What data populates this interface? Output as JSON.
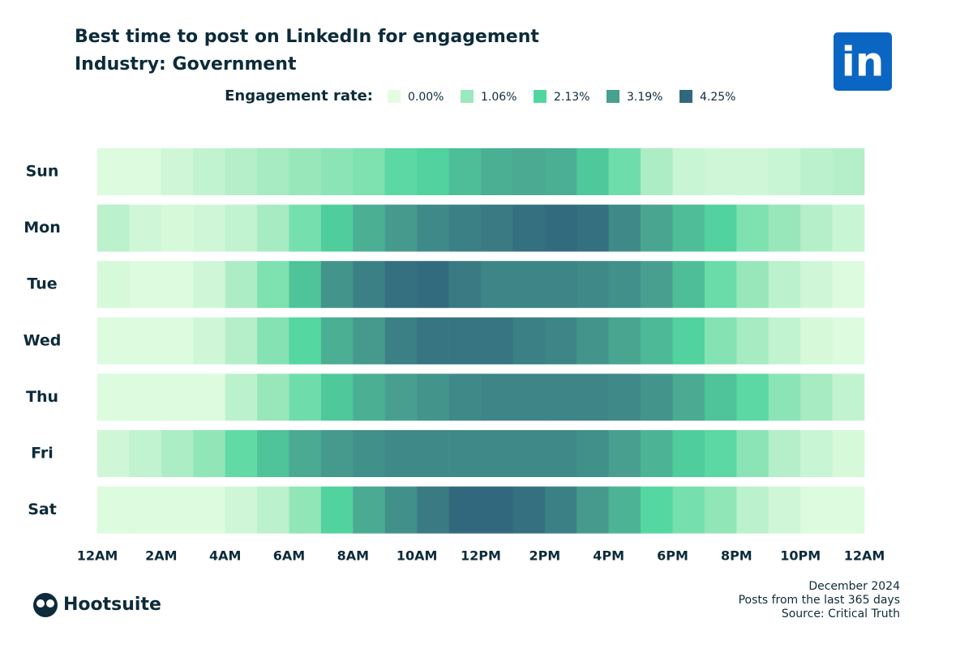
{
  "chart_data": {
    "type": "heatmap",
    "title": "Best time to post on LinkedIn for engagement",
    "subtitle": "Industry: Government",
    "legend_title": "Engagement rate:",
    "legend": [
      {
        "value": 0,
        "label": "0.00%",
        "color": "#e4fde1"
      },
      {
        "value": 1.06,
        "label": "1.06%",
        "color": "#9be8bc"
      },
      {
        "value": 2.13,
        "label": "2.13%",
        "color": "#52d6a0"
      },
      {
        "value": 3.19,
        "label": "3.19%",
        "color": "#48a08f"
      },
      {
        "value": 4.25,
        "label": "4.25%",
        "color": "#31687d"
      }
    ],
    "xlim": [
      0,
      24
    ],
    "xticks": [
      {
        "value": 0,
        "label": "12AM"
      },
      {
        "value": 2,
        "label": "2AM"
      },
      {
        "value": 4,
        "label": "4AM"
      },
      {
        "value": 6,
        "label": "6AM"
      },
      {
        "value": 8,
        "label": "8AM"
      },
      {
        "value": 10,
        "label": "10AM"
      },
      {
        "value": 12,
        "label": "12PM"
      },
      {
        "value": 14,
        "label": "2PM"
      },
      {
        "value": 16,
        "label": "4PM"
      },
      {
        "value": 18,
        "label": "6PM"
      },
      {
        "value": 20,
        "label": "8PM"
      },
      {
        "value": 22,
        "label": "10PM"
      },
      {
        "value": 24,
        "label": "12AM"
      }
    ],
    "series": [
      {
        "name": "Sun",
        "values": [
          0.1,
          0.1,
          0.3,
          0.5,
          0.7,
          0.9,
          1.1,
          1.3,
          1.5,
          2.0,
          2.2,
          2.6,
          2.9,
          3.0,
          2.9,
          2.4,
          1.7,
          0.8,
          0.4,
          0.3,
          0.3,
          0.4,
          0.6,
          0.7
        ]
      },
      {
        "name": "Mon",
        "values": [
          0.6,
          0.3,
          0.2,
          0.3,
          0.5,
          0.9,
          1.6,
          2.3,
          2.9,
          3.3,
          3.6,
          3.8,
          3.9,
          4.1,
          4.2,
          4.1,
          3.6,
          3.1,
          2.6,
          2.2,
          1.5,
          1.1,
          0.7,
          0.4
        ]
      },
      {
        "name": "Tue",
        "values": [
          0.2,
          0.1,
          0.1,
          0.3,
          0.8,
          1.5,
          2.5,
          3.4,
          3.8,
          4.1,
          4.2,
          3.9,
          3.7,
          3.7,
          3.7,
          3.6,
          3.5,
          3.2,
          2.6,
          1.8,
          1.1,
          0.6,
          0.3,
          0.1
        ]
      },
      {
        "name": "Wed",
        "values": [
          0.1,
          0.1,
          0.1,
          0.3,
          0.7,
          1.4,
          2.1,
          2.9,
          3.3,
          3.8,
          4.0,
          4.0,
          4.0,
          3.8,
          3.7,
          3.4,
          3.1,
          2.7,
          2.2,
          1.4,
          0.9,
          0.5,
          0.2,
          0.1
        ]
      },
      {
        "name": "Thu",
        "values": [
          0.1,
          0.1,
          0.1,
          0.1,
          0.6,
          1.1,
          1.7,
          2.4,
          2.9,
          3.2,
          3.4,
          3.6,
          3.7,
          3.7,
          3.7,
          3.7,
          3.6,
          3.4,
          3.0,
          2.5,
          2.0,
          1.3,
          0.9,
          0.5
        ]
      },
      {
        "name": "Fri",
        "values": [
          0.3,
          0.5,
          0.8,
          1.2,
          1.9,
          2.5,
          3.0,
          3.3,
          3.5,
          3.6,
          3.6,
          3.6,
          3.6,
          3.6,
          3.6,
          3.5,
          3.2,
          2.8,
          2.3,
          2.0,
          1.3,
          0.7,
          0.4,
          0.2
        ]
      },
      {
        "name": "Sat",
        "values": [
          0.1,
          0.1,
          0.1,
          0.1,
          0.3,
          0.6,
          1.2,
          2.2,
          3.0,
          3.5,
          3.9,
          4.3,
          4.3,
          4.1,
          3.8,
          3.3,
          2.8,
          2.1,
          1.6,
          1.2,
          0.6,
          0.3,
          0.1,
          0.1
        ]
      }
    ]
  },
  "logo": "in",
  "footer": {
    "brand": "Hootsuite",
    "notes": [
      "December 2024",
      "Posts from the last 365 days",
      "Source: Critical Truth"
    ]
  }
}
